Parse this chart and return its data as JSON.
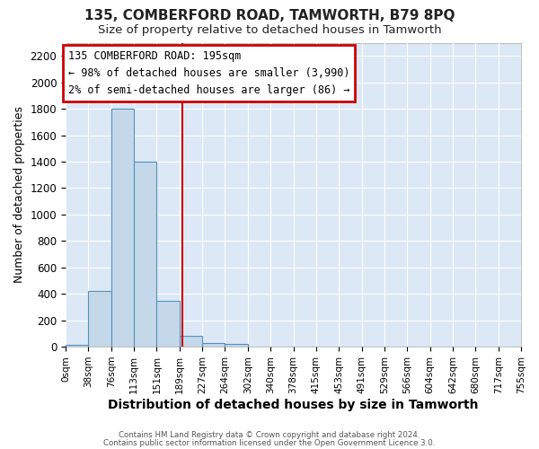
{
  "title": "135, COMBERFORD ROAD, TAMWORTH, B79 8PQ",
  "subtitle": "Size of property relative to detached houses in Tamworth",
  "xlabel": "Distribution of detached houses by size in Tamworth",
  "ylabel": "Number of detached properties",
  "bin_edges": [
    0,
    38,
    76,
    114,
    152,
    190,
    228,
    266,
    304,
    342,
    380,
    418,
    456,
    494,
    532,
    570,
    608,
    646,
    684,
    722,
    760
  ],
  "bar_heights": [
    15,
    425,
    1800,
    1400,
    350,
    80,
    25,
    20,
    0,
    0,
    0,
    0,
    0,
    0,
    0,
    0,
    0,
    0,
    0,
    0
  ],
  "bar_color": "#c5d8ea",
  "bar_edge_color": "#5590bb",
  "vline_x": 195,
  "vline_color": "#cc0000",
  "annotation_title": "135 COMBERFORD ROAD: 195sqm",
  "annotation_line1": "← 98% of detached houses are smaller (3,990)",
  "annotation_line2": "2% of semi-detached houses are larger (86) →",
  "annotation_box_color": "#cc0000",
  "annotation_bg": "#ffffff",
  "ylim": [
    0,
    2300
  ],
  "yticks": [
    0,
    200,
    400,
    600,
    800,
    1000,
    1200,
    1400,
    1600,
    1800,
    2000,
    2200
  ],
  "xtick_labels": [
    "0sqm",
    "38sqm",
    "76sqm",
    "113sqm",
    "151sqm",
    "189sqm",
    "227sqm",
    "264sqm",
    "302sqm",
    "340sqm",
    "378sqm",
    "415sqm",
    "453sqm",
    "491sqm",
    "529sqm",
    "566sqm",
    "604sqm",
    "642sqm",
    "680sqm",
    "717sqm",
    "755sqm"
  ],
  "footer1": "Contains HM Land Registry data © Crown copyright and database right 2024.",
  "footer2": "Contains public sector information licensed under the Open Government Licence 3.0.",
  "bg_color": "#ffffff",
  "plot_bg": "#dce8f5",
  "grid_color": "#ffffff",
  "title_fontsize": 11,
  "subtitle_fontsize": 9.5,
  "xlabel_fontsize": 10,
  "ylabel_fontsize": 9
}
